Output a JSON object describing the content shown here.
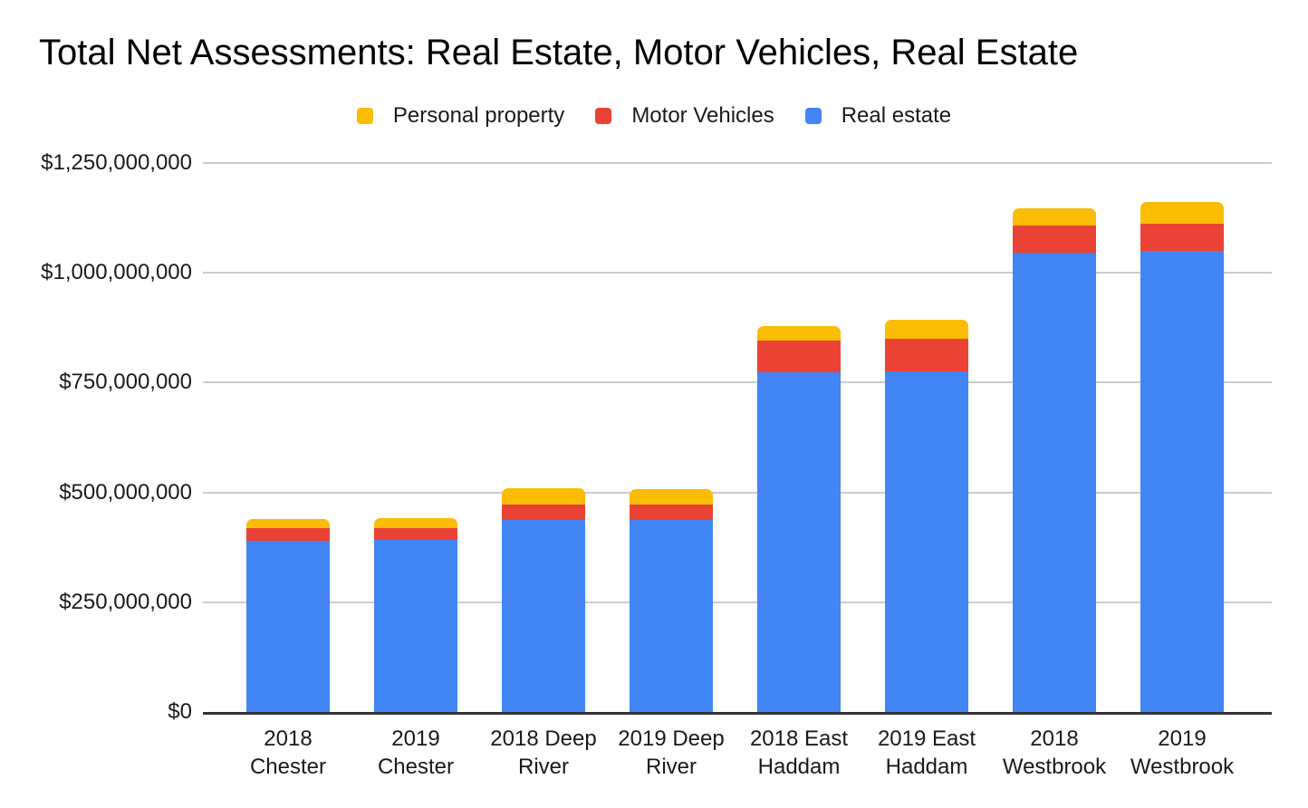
{
  "colors": {
    "real_estate": "#4285F4",
    "motor_vehicles": "#EA4335",
    "personal_property": "#FBBC04",
    "gridline": "#CCCCCC",
    "axis_line": "#333333",
    "title_text": "#000000",
    "label_text": "#1A1A1A",
    "background": "#FFFFFF"
  },
  "chart_data": {
    "type": "bar",
    "stacked": true,
    "title": "Total Net Assessments: Real Estate, Motor Vehicles, Real Estate",
    "legend_position": "top",
    "grid": true,
    "categories": [
      "2018 Chester",
      "2019 Chester",
      "2018 Deep River",
      "2019 Deep River",
      "2018 East Haddam",
      "2019 East Haddam",
      "2018 Westbrook",
      "2019 Westbrook"
    ],
    "category_lines": [
      [
        "2018",
        "Chester"
      ],
      [
        "2019",
        "Chester"
      ],
      [
        "2018 Deep",
        "River"
      ],
      [
        "2019 Deep",
        "River"
      ],
      [
        "2018 East",
        "Haddam"
      ],
      [
        "2019 East",
        "Haddam"
      ],
      [
        "2018",
        "Westbrook"
      ],
      [
        "2019",
        "Westbrook"
      ]
    ],
    "series": [
      {
        "name": "Real estate",
        "color": "#4285F4",
        "values": [
          390000000,
          391000000,
          437000000,
          437000000,
          774000000,
          775000000,
          1046000000,
          1050000000
        ]
      },
      {
        "name": "Motor Vehicles",
        "color": "#EA4335",
        "values": [
          28000000,
          29000000,
          35000000,
          35000000,
          72000000,
          75000000,
          62000000,
          62000000
        ]
      },
      {
        "name": "Personal property",
        "color": "#FBBC04",
        "values": [
          21000000,
          22000000,
          37000000,
          35000000,
          33000000,
          44000000,
          39000000,
          50000000
        ]
      }
    ],
    "legend": [
      {
        "label": "Personal property",
        "color": "#FBBC04"
      },
      {
        "label": "Motor Vehicles",
        "color": "#EA4335"
      },
      {
        "label": "Real estate",
        "color": "#4285F4"
      }
    ],
    "y_axis": {
      "min": 0,
      "max": 1250000000,
      "ticks": [
        0,
        250000000,
        500000000,
        750000000,
        1000000000,
        1250000000
      ],
      "tick_labels": [
        "$0",
        "$250,000,000",
        "$500,000,000",
        "$750,000,000",
        "$1,000,000,000",
        "$1,250,000,000"
      ]
    }
  }
}
